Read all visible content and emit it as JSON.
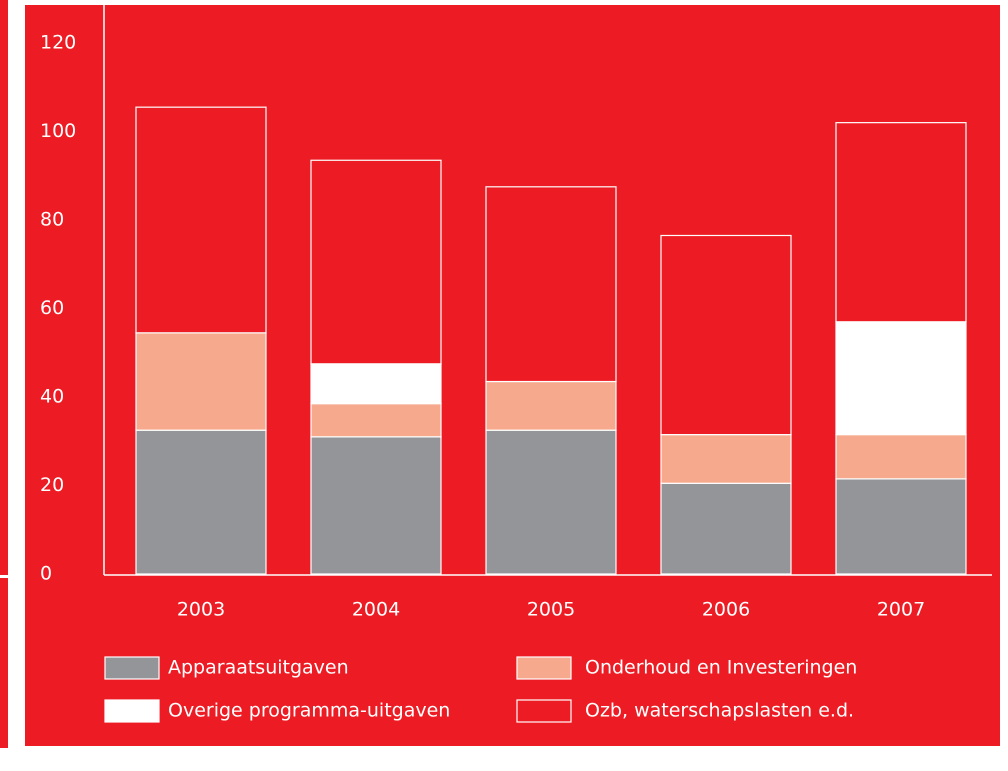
{
  "chart_data": {
    "type": "stacked_bar",
    "categories": [
      "2003",
      "2004",
      "2005",
      "2006",
      "2007"
    ],
    "series": [
      {
        "name": "Apparaatsuitgaven",
        "color": "#939598",
        "values": [
          32.5,
          31,
          32.5,
          20.5,
          21.5
        ]
      },
      {
        "name": "Onderhoud en Investeringen",
        "color": "#f7a98d",
        "values": [
          22,
          7.5,
          11,
          11,
          10
        ]
      },
      {
        "name": "Overige programma-uitgaven",
        "color": "#ffffff",
        "values": [
          0,
          9,
          0,
          0,
          25.5
        ]
      },
      {
        "name": "Ozb, waterschapslasten e.d.",
        "color": "#ed1c24",
        "values": [
          51,
          46,
          44,
          45,
          45
        ]
      }
    ],
    "ylim": [
      0,
      120
    ],
    "yticks": [
      0,
      20,
      40,
      60,
      80,
      100,
      120
    ],
    "grid": false
  }
}
